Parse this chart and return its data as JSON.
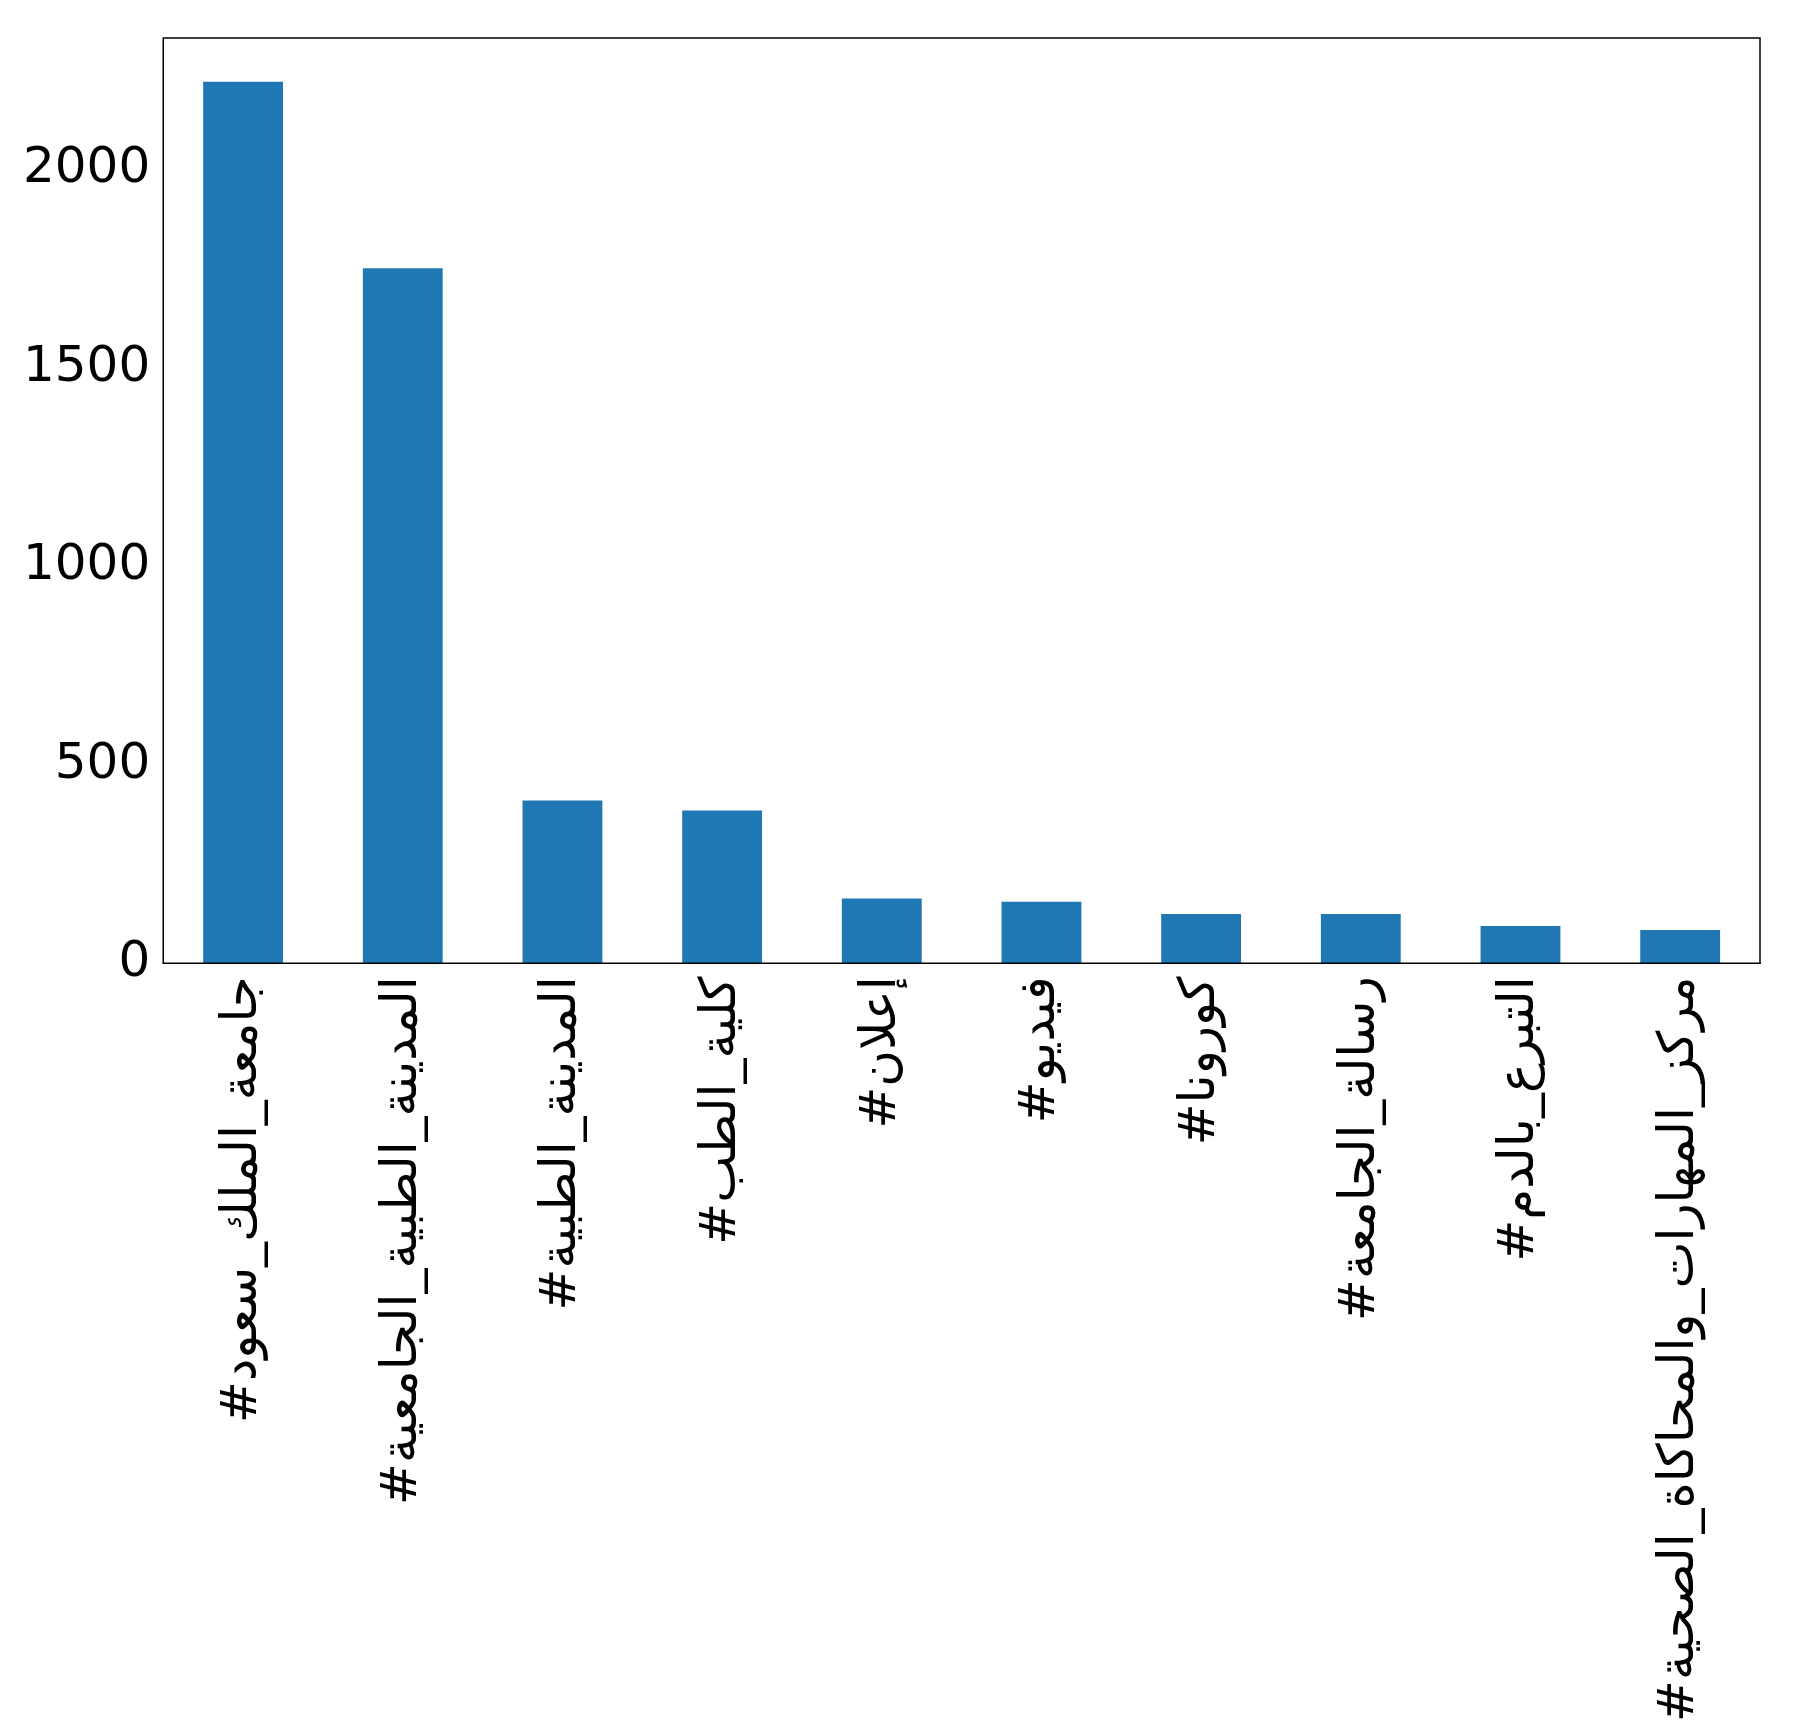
{
  "chart_data": {
    "type": "bar",
    "categories": [
      "#جامعة_الملك_سعود",
      "#المدينة_الطبية_الجامعية",
      "#المدينة_الطبية",
      "#كلية_الطب",
      "#إعلان",
      "#فيديو",
      "#كورونا",
      "#رسالة_الجامعة",
      "#التبرع_بالدم",
      "#مركز_المهارات_والمحاكاة_الصحية"
    ],
    "values": [
      2220,
      1750,
      410,
      385,
      163,
      155,
      124,
      124,
      94,
      84
    ],
    "color": "#1f77b4",
    "ylim": [
      0,
      2330
    ],
    "yticks": [
      0,
      500,
      1000,
      1500,
      2000
    ],
    "grid": false
  }
}
